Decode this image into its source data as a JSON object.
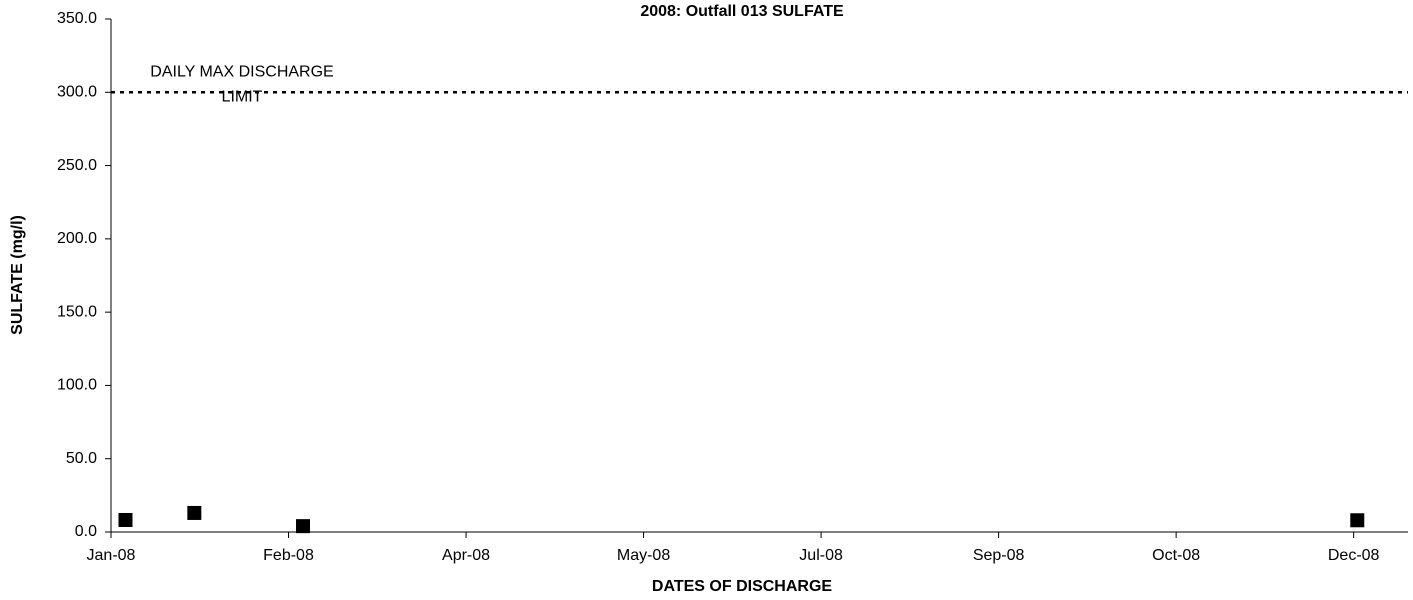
{
  "chart_data": {
    "type": "scatter",
    "title": "2008: Outfall 013 SULFATE",
    "xlabel": "DATES OF DISCHARGE",
    "ylabel": "SULFATE (mg/l)",
    "x": [
      9,
      28,
      58,
      349
    ],
    "series": [
      {
        "name": "SULFATE",
        "color": "#000000",
        "values": [
          8.2,
          13,
          4,
          8
        ]
      }
    ],
    "xlim": [
      5,
      363
    ],
    "xticks": [
      {
        "value": 5,
        "label": "Jan-08"
      },
      {
        "value": 54,
        "label": "Feb-08"
      },
      {
        "value": 103,
        "label": "Apr-08"
      },
      {
        "value": 152,
        "label": "May-08"
      },
      {
        "value": 201,
        "label": "Jul-08"
      },
      {
        "value": 250,
        "label": "Sep-08"
      },
      {
        "value": 299,
        "label": "Oct-08"
      },
      {
        "value": 348,
        "label": "Dec-08"
      }
    ],
    "ylim": [
      0,
      350
    ],
    "yticks": [
      {
        "value": 0,
        "label": "0.0"
      },
      {
        "value": 50,
        "label": "50.0"
      },
      {
        "value": 100,
        "label": "100.0"
      },
      {
        "value": 150,
        "label": "150.0"
      },
      {
        "value": 200,
        "label": "200.0"
      },
      {
        "value": 250,
        "label": "250.0"
      },
      {
        "value": 300,
        "label": "300.0"
      },
      {
        "value": 350,
        "label": "350.0"
      }
    ],
    "annotation": {
      "lines": [
        "DAILY MAX DISCHARGE",
        "LIMIT"
      ],
      "value": 300,
      "color": "#000000"
    }
  }
}
